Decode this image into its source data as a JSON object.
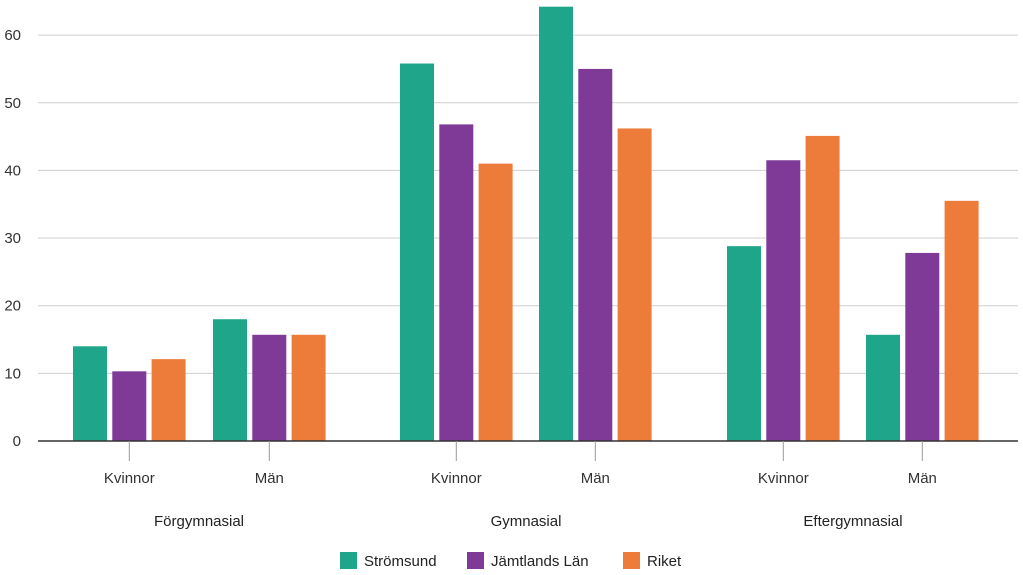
{
  "chart_data": {
    "type": "bar",
    "ylim": [
      0,
      65
    ],
    "yticks": [
      0,
      10,
      20,
      30,
      40,
      50,
      60
    ],
    "grid": true,
    "legend_position": "bottom",
    "groups": [
      {
        "name": "Förgymnasial",
        "categories": [
          "Kvinnor",
          "Män"
        ]
      },
      {
        "name": "Gymnasial",
        "categories": [
          "Kvinnor",
          "Män"
        ]
      },
      {
        "name": "Eftergymnasial",
        "categories": [
          "Kvinnor",
          "Män"
        ]
      }
    ],
    "series": [
      {
        "name": "Strömsund",
        "color": "#1fa68a",
        "values": [
          14.0,
          18.0,
          55.8,
          64.2,
          28.8,
          15.7
        ]
      },
      {
        "name": "Jämtlands Län",
        "color": "#7e3a96",
        "values": [
          10.3,
          15.7,
          46.8,
          55.0,
          41.5,
          27.8
        ]
      },
      {
        "name": "Riket",
        "color": "#ed7c3a",
        "values": [
          12.1,
          15.7,
          41.0,
          46.2,
          45.1,
          35.5
        ]
      }
    ]
  }
}
